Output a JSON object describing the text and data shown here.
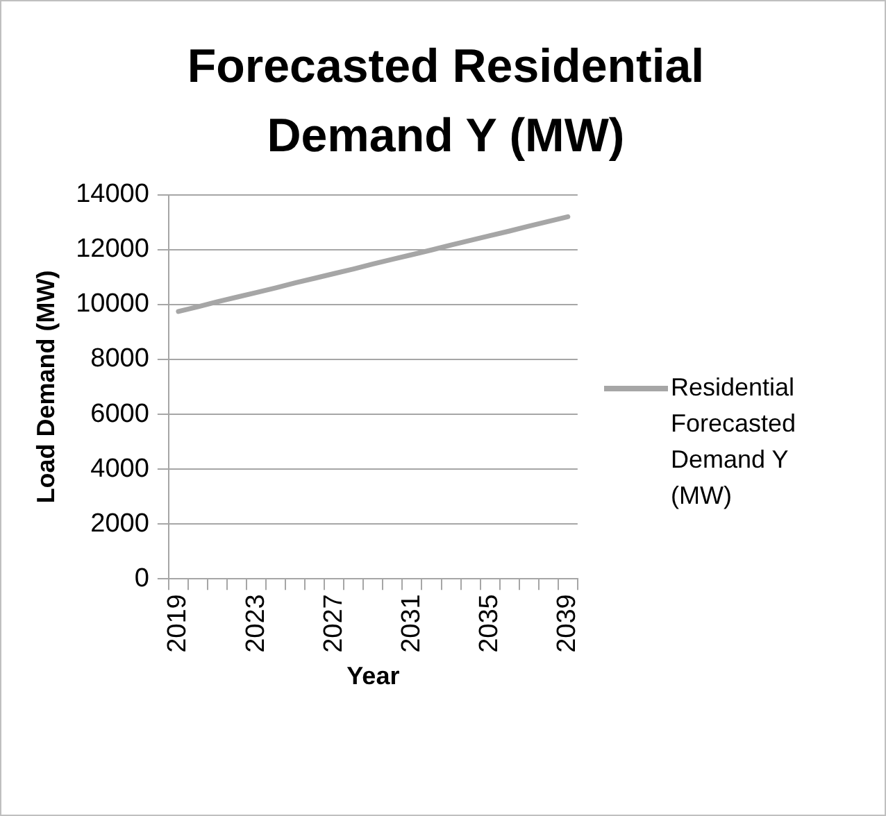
{
  "chart_data": {
    "type": "line",
    "title": "Forecasted Residential Demand Y (MW)",
    "xlabel": "Year",
    "ylabel": "Load Demand (MW)",
    "categories": [
      "2019",
      null,
      null,
      null,
      "2023",
      null,
      null,
      null,
      "2027",
      null,
      null,
      null,
      "2031",
      null,
      null,
      null,
      "2035",
      null,
      null,
      null,
      "2039"
    ],
    "series": [
      {
        "name": "Residential Forecasted Demand Y (MW)",
        "color": "#a6a6a6",
        "values": [
          9750,
          9920,
          10100,
          10270,
          10440,
          10610,
          10790,
          10960,
          11130,
          11300,
          11480,
          11650,
          11820,
          11990,
          12170,
          12340,
          12510,
          12680,
          12860,
          13030,
          13200
        ]
      }
    ],
    "ylim": [
      0,
      14000
    ],
    "yticks": [
      0,
      2000,
      4000,
      6000,
      8000,
      10000,
      12000,
      14000
    ],
    "grid": "y",
    "legend": "right",
    "marker": "none",
    "line_style": "solid"
  }
}
